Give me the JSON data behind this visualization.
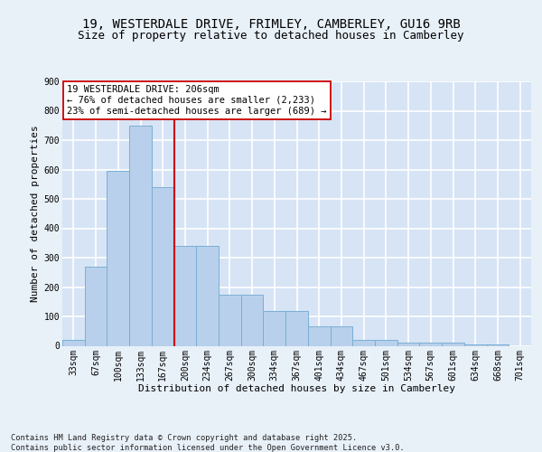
{
  "title_line1": "19, WESTERDALE DRIVE, FRIMLEY, CAMBERLEY, GU16 9RB",
  "title_line2": "Size of property relative to detached houses in Camberley",
  "xlabel": "Distribution of detached houses by size in Camberley",
  "ylabel": "Number of detached properties",
  "categories": [
    "33sqm",
    "67sqm",
    "100sqm",
    "133sqm",
    "167sqm",
    "200sqm",
    "234sqm",
    "267sqm",
    "300sqm",
    "334sqm",
    "367sqm",
    "401sqm",
    "434sqm",
    "467sqm",
    "501sqm",
    "534sqm",
    "567sqm",
    "601sqm",
    "634sqm",
    "668sqm",
    "701sqm"
  ],
  "values": [
    20,
    270,
    595,
    750,
    540,
    340,
    340,
    175,
    175,
    120,
    120,
    65,
    65,
    20,
    20,
    10,
    10,
    10,
    5,
    5,
    0
  ],
  "bar_color": "#b8d0eb",
  "bar_edge_color": "#7aafd4",
  "bg_color": "#d6e4f5",
  "fig_bg_color": "#e8f0f8",
  "grid_color": "#ffffff",
  "vline_color": "#cc0000",
  "vline_x": 4.5,
  "annotation_text": "19 WESTERDALE DRIVE: 206sqm\n← 76% of detached houses are smaller (2,233)\n23% of semi-detached houses are larger (689) →",
  "annotation_box_facecolor": "#ffffff",
  "annotation_box_edgecolor": "#cc0000",
  "footnote": "Contains HM Land Registry data © Crown copyright and database right 2025.\nContains public sector information licensed under the Open Government Licence v3.0.",
  "ylim_max": 900,
  "yticks": [
    0,
    100,
    200,
    300,
    400,
    500,
    600,
    700,
    800,
    900
  ],
  "title_fontsize": 10,
  "subtitle_fontsize": 9,
  "axis_label_fontsize": 8,
  "tick_fontsize": 7,
  "annotation_fontsize": 7.5,
  "footnote_fontsize": 6.2
}
